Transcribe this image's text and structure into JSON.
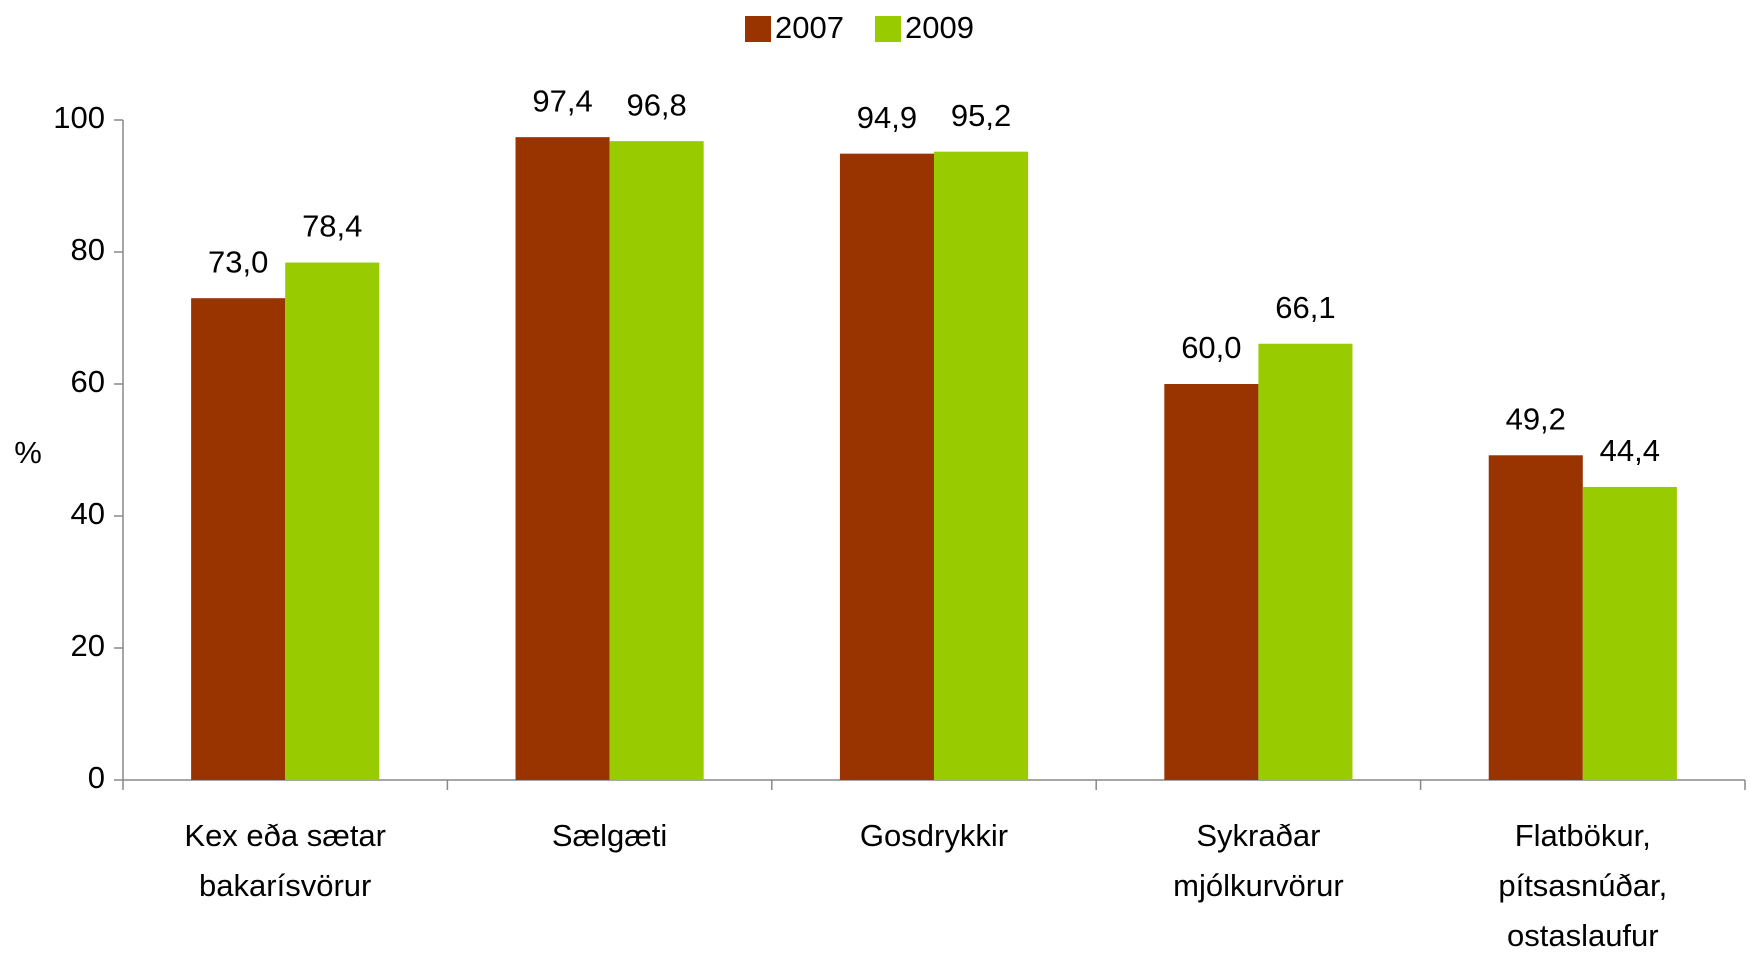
{
  "chart_data": {
    "type": "bar",
    "categories": [
      [
        "Kex eða sætar",
        "bakarísvörur"
      ],
      [
        "Sælgæti"
      ],
      [
        "Gosdrykkir"
      ],
      [
        "Sykraðar",
        "mjólkurvörur"
      ],
      [
        "Flatbökur,",
        "pítsasnúðar,",
        "ostaslaufur"
      ]
    ],
    "series": [
      {
        "name": "2007",
        "color": "#993300",
        "values": [
          73.0,
          97.4,
          94.9,
          60.0,
          49.2
        ],
        "value_labels": [
          "73,0",
          "97,4",
          "94,9",
          "60,0",
          "49,2"
        ]
      },
      {
        "name": "2009",
        "color": "#99cc00",
        "values": [
          78.4,
          96.8,
          95.2,
          66.1,
          44.4
        ],
        "value_labels": [
          "78,4",
          "96,8",
          "95,2",
          "66,1",
          "44,4"
        ]
      }
    ],
    "y_label": "%",
    "ylim": [
      0,
      100
    ],
    "yticks": [
      0,
      20,
      40,
      60,
      80,
      100
    ],
    "legend": "top"
  }
}
